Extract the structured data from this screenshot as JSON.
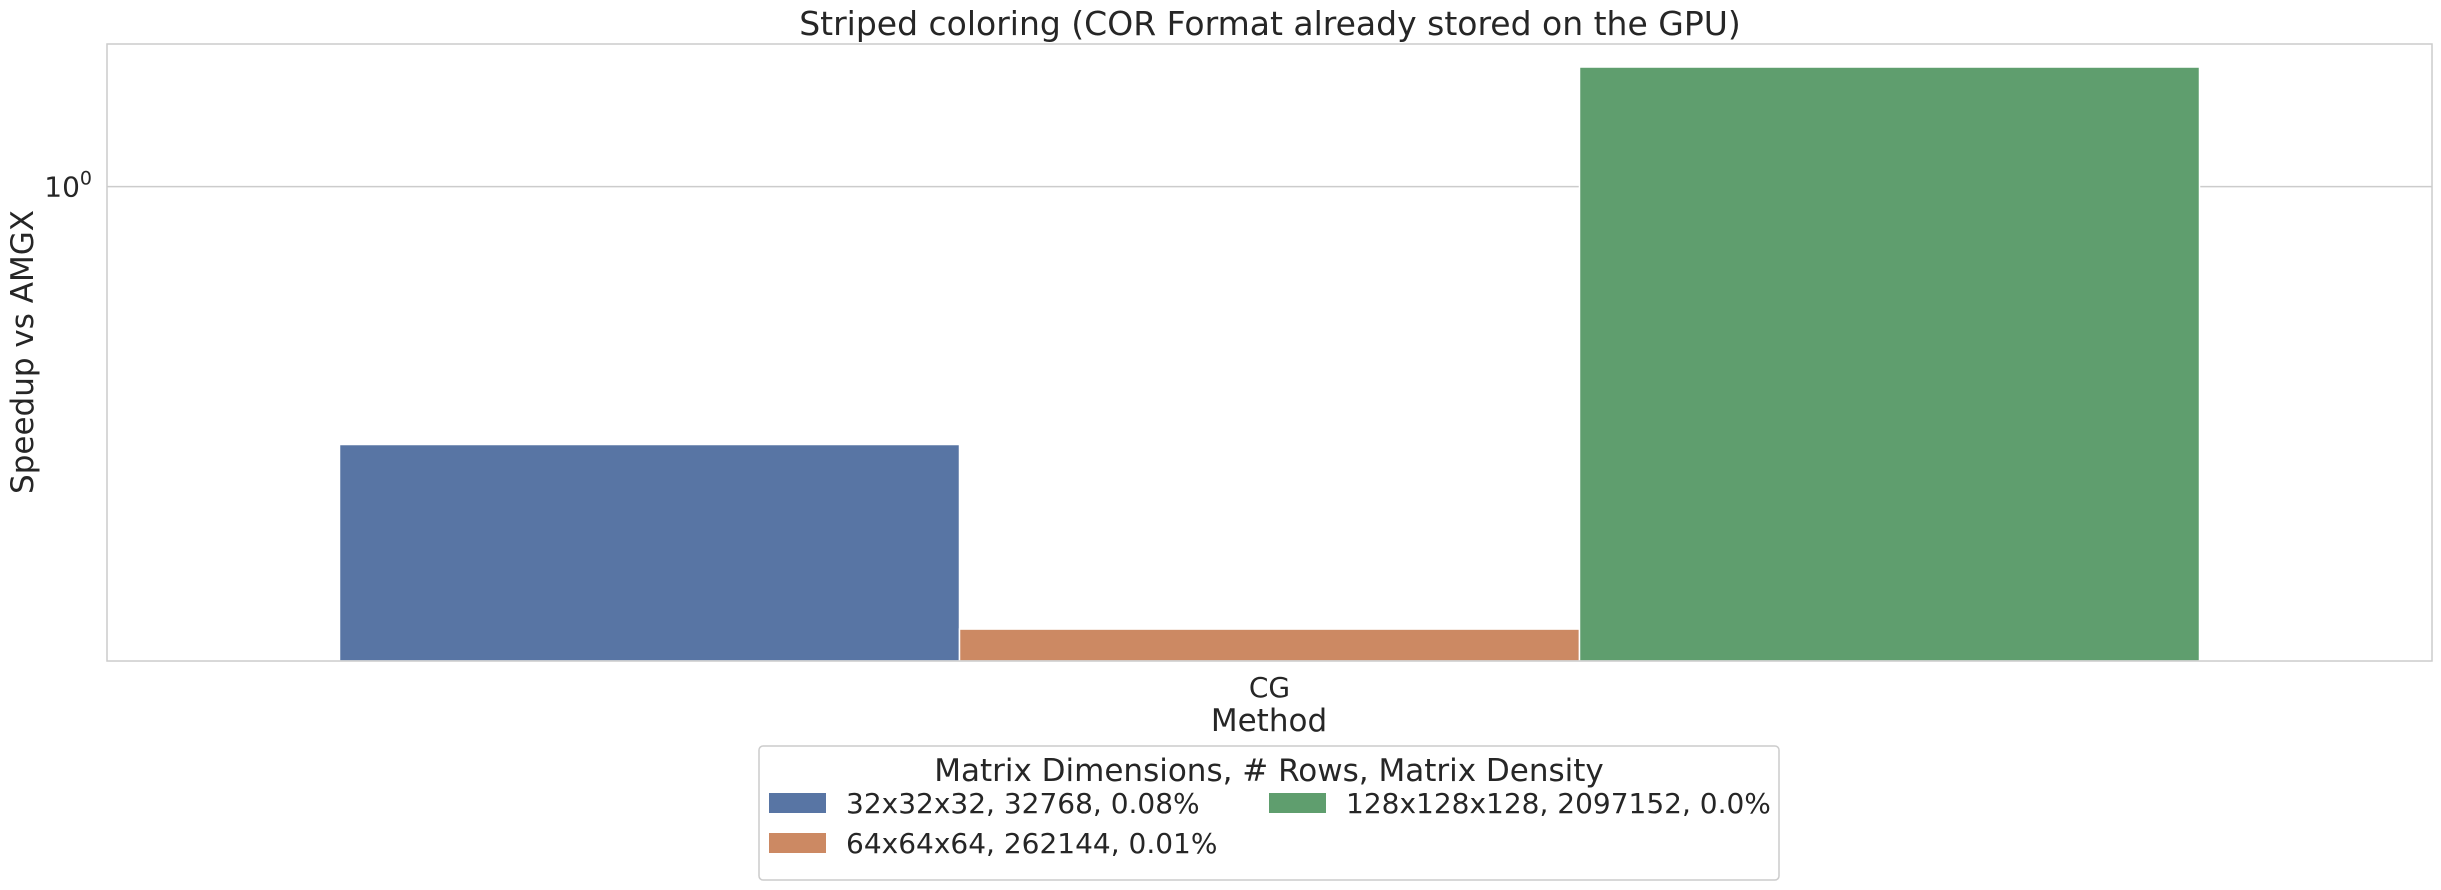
{
  "chart_data": {
    "type": "bar",
    "title": "Striped coloring (COR Format already stored on the GPU)",
    "xlabel": "Method",
    "ylabel": "Speedup vs AMGX",
    "categories": [
      "CG"
    ],
    "yscale": "log",
    "ylim": [
      0.44,
      1.28
    ],
    "yticks": [
      {
        "value": 1,
        "base": "10",
        "exp": "0"
      }
    ],
    "grid": true,
    "series": [
      {
        "name": "32x32x32, 32768, 0.08%",
        "values": [
          0.64
        ],
        "color": "#5875a4"
      },
      {
        "name": "64x64x64, 262144, 0.01%",
        "values": [
          0.465
        ],
        "color": "#cc8963"
      },
      {
        "name": "128x128x128, 2097152, 0.0%",
        "values": [
          1.23
        ],
        "color": "#5f9e6e"
      }
    ],
    "legend": {
      "title": "Matrix Dimensions, # Rows, Matrix Density",
      "placement": "bottom-center",
      "columns": 2
    }
  }
}
